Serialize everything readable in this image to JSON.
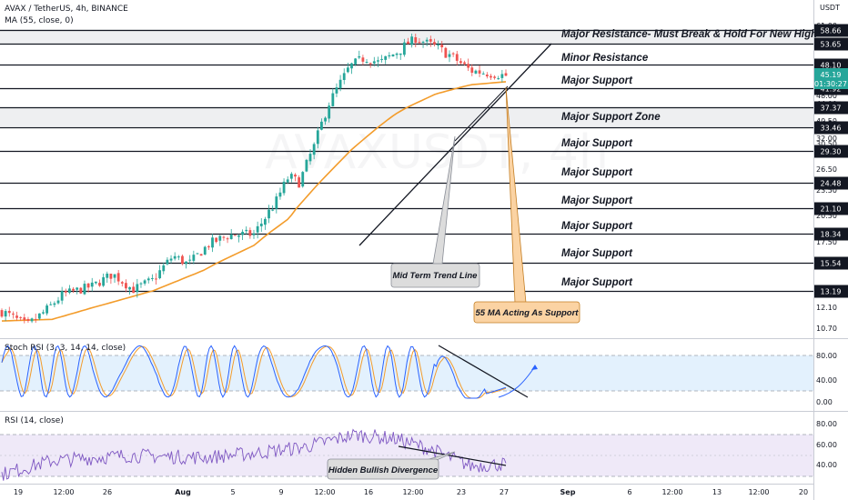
{
  "header": {
    "pair": "AVAX / TetherUS, 4h, BINANCE",
    "ma_indicator": "MA (55, close, 0)",
    "stoch_indicator": "Stoch RSI (3, 3, 14, 14, close)",
    "rsi_indicator": "RSI (14, close)",
    "currency": "USDT",
    "watermark": "AVAXUSDT, 4h"
  },
  "price_axis": {
    "ticks": [
      "61.00",
      "56.00",
      "52.00",
      "48.00",
      "44.00",
      "40.50",
      "37.00",
      "34.50",
      "32.00",
      "30.50",
      "26.50",
      "23.50",
      "20.50",
      "17.50",
      "12.10",
      "10.70"
    ],
    "current_price": "45.19",
    "countdown": "01:30:27"
  },
  "levels": [
    {
      "price": 58.66,
      "label": "58.66",
      "annotation": "Major Resistance- Must Break & Hold For New High"
    },
    {
      "price": 53.65,
      "label": "53.65",
      "annotation": ""
    },
    {
      "price": 48.1,
      "label": "48.10",
      "annotation": "Minor Resistance"
    },
    {
      "price": 41.92,
      "label": "41.92",
      "annotation": "Major Support"
    },
    {
      "price": 37.37,
      "label": "37.37",
      "annotation": "Major Support Zone"
    },
    {
      "price": 33.46,
      "label": "33.46",
      "annotation": ""
    },
    {
      "price": 29.3,
      "label": "29.30",
      "annotation": "Major Support"
    },
    {
      "price": 24.48,
      "label": "24.48",
      "annotation": "Major Support"
    },
    {
      "price": 21.1,
      "label": "21.10",
      "annotation": "Major Support"
    },
    {
      "price": 18.34,
      "label": "18.34",
      "annotation": "Major Support"
    },
    {
      "price": 15.54,
      "label": "15.54",
      "annotation": "Major Support"
    },
    {
      "price": 13.19,
      "label": "13.19",
      "annotation": "Major Support"
    }
  ],
  "callouts": {
    "trend_line": "Mid Term Trend Line",
    "ma_support": "55 MA Acting As Support",
    "divergence": "Hidden Bullish Divergence"
  },
  "stoch_axis": [
    "80.00",
    "40.00",
    "0.00"
  ],
  "rsi_axis": [
    "80.00",
    "60.00",
    "40.00"
  ],
  "time_axis": [
    "19",
    "12:00",
    "26",
    "Aug",
    "5",
    "9",
    "12:00",
    "16",
    "12:00",
    "23",
    "27",
    "Sep",
    "6",
    "12:00",
    "13",
    "12:00",
    "20"
  ],
  "colors": {
    "bull": "#26a69a",
    "bear": "#ef5350",
    "ma": "#f39c2b",
    "stoch_k": "#2962ff",
    "stoch_d": "#f39c2b",
    "rsi": "#7e57c2",
    "price_badge": "#26a69a",
    "callout_grey": "#dcdcdc",
    "callout_orange": "#fbd3a3"
  },
  "chart_data": {
    "type": "candlestick",
    "symbol": "AVAX / TetherUS",
    "timeframe": "4h",
    "exchange": "BINANCE",
    "price_range": [
      9.5,
      62
    ],
    "last_price": 45.19,
    "anchors": [
      {
        "t": 0,
        "p": 11.8
      },
      {
        "t": 0.05,
        "p": 10.9
      },
      {
        "t": 0.09,
        "p": 11.9
      },
      {
        "t": 0.12,
        "p": 12.9
      },
      {
        "t": 0.18,
        "p": 13.6
      },
      {
        "t": 0.22,
        "p": 14.6
      },
      {
        "t": 0.26,
        "p": 13.3
      },
      {
        "t": 0.3,
        "p": 14.1
      },
      {
        "t": 0.34,
        "p": 16.2
      },
      {
        "t": 0.37,
        "p": 15.4
      },
      {
        "t": 0.41,
        "p": 17.3
      },
      {
        "t": 0.45,
        "p": 18.2
      },
      {
        "t": 0.5,
        "p": 18.3
      },
      {
        "t": 0.54,
        "p": 21.5
      },
      {
        "t": 0.57,
        "p": 25.5
      },
      {
        "t": 0.59,
        "p": 24.5
      },
      {
        "t": 0.62,
        "p": 30.2
      },
      {
        "t": 0.65,
        "p": 38.5
      },
      {
        "t": 0.69,
        "p": 47.5
      },
      {
        "t": 0.72,
        "p": 50.0
      },
      {
        "t": 0.75,
        "p": 48.5
      },
      {
        "t": 0.79,
        "p": 52.0
      },
      {
        "t": 0.82,
        "p": 55.5
      },
      {
        "t": 0.85,
        "p": 53.5
      },
      {
        "t": 0.89,
        "p": 50.5
      },
      {
        "t": 0.93,
        "p": 46.5
      },
      {
        "t": 1,
        "p": 45.2
      }
    ],
    "ma55_anchors": [
      {
        "t": 0,
        "p": 11.2
      },
      {
        "t": 0.1,
        "p": 11.3
      },
      {
        "t": 0.2,
        "p": 12.2
      },
      {
        "t": 0.3,
        "p": 13.2
      },
      {
        "t": 0.4,
        "p": 14.9
      },
      {
        "t": 0.5,
        "p": 17.2
      },
      {
        "t": 0.57,
        "p": 20.0
      },
      {
        "t": 0.63,
        "p": 24.5
      },
      {
        "t": 0.7,
        "p": 30.0
      },
      {
        "t": 0.78,
        "p": 36.0
      },
      {
        "t": 0.86,
        "p": 40.5
      },
      {
        "t": 0.93,
        "p": 42.8
      },
      {
        "t": 1,
        "p": 43.6
      }
    ],
    "stoch_rsi_range": [
      0,
      100
    ],
    "rsi_range": [
      30,
      90
    ],
    "rsi_anchors": [
      {
        "t": 0,
        "p": 42
      },
      {
        "t": 0.1,
        "p": 55
      },
      {
        "t": 0.25,
        "p": 60
      },
      {
        "t": 0.4,
        "p": 58
      },
      {
        "t": 0.5,
        "p": 62
      },
      {
        "t": 0.6,
        "p": 68
      },
      {
        "t": 0.7,
        "p": 80
      },
      {
        "t": 0.78,
        "p": 76
      },
      {
        "t": 0.85,
        "p": 66
      },
      {
        "t": 0.93,
        "p": 50
      },
      {
        "t": 1,
        "p": 52
      }
    ],
    "stoch_overbought": 80,
    "stoch_oversold": 20,
    "rsi_overbought": 70,
    "rsi_oversold": 30
  }
}
